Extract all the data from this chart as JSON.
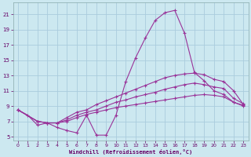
{
  "xlabel": "Windchill (Refroidissement éolien,°C)",
  "ylabel": "",
  "bg_color": "#cce8f0",
  "grid_color": "#aaccdd",
  "line_color": "#993399",
  "xlim": [
    -0.5,
    23.5
  ],
  "ylim": [
    4.5,
    22.5
  ],
  "xticks": [
    0,
    1,
    2,
    3,
    4,
    5,
    6,
    7,
    8,
    9,
    10,
    11,
    12,
    13,
    14,
    15,
    16,
    17,
    18,
    19,
    20,
    21,
    22,
    23
  ],
  "yticks": [
    5,
    7,
    9,
    11,
    13,
    15,
    17,
    19,
    21
  ],
  "line1_x": [
    0,
    1,
    2,
    3,
    4,
    5,
    6,
    7,
    8,
    9,
    10,
    11,
    12,
    13,
    14,
    15,
    16,
    17,
    18,
    19,
    20,
    21,
    22,
    23
  ],
  "line1_y": [
    8.5,
    7.8,
    6.5,
    6.8,
    6.2,
    5.8,
    5.5,
    7.8,
    5.2,
    5.2,
    7.8,
    12.2,
    15.3,
    17.9,
    20.2,
    21.2,
    21.5,
    18.5,
    13.4,
    12.3,
    11.0,
    10.5,
    9.5,
    9.0
  ],
  "line2_x": [
    0,
    2,
    3,
    4,
    5,
    6,
    7,
    8,
    9,
    10,
    11,
    12,
    13,
    14,
    15,
    16,
    17,
    18,
    19,
    20,
    21,
    22,
    23
  ],
  "line2_y": [
    8.5,
    7.0,
    6.8,
    6.8,
    7.5,
    8.2,
    8.5,
    9.2,
    9.7,
    10.2,
    10.7,
    11.2,
    11.7,
    12.2,
    12.7,
    13.0,
    13.2,
    13.3,
    13.1,
    12.5,
    12.2,
    11.0,
    9.2
  ],
  "line3_x": [
    0,
    2,
    3,
    4,
    5,
    6,
    7,
    8,
    9,
    10,
    11,
    12,
    13,
    14,
    15,
    16,
    17,
    18,
    19,
    20,
    21,
    22,
    23
  ],
  "line3_y": [
    8.5,
    7.0,
    6.8,
    6.8,
    7.2,
    7.8,
    8.2,
    8.5,
    9.0,
    9.5,
    9.8,
    10.2,
    10.5,
    10.8,
    11.2,
    11.5,
    11.8,
    12.0,
    11.8,
    11.5,
    11.3,
    10.0,
    9.3
  ],
  "line4_x": [
    0,
    2,
    3,
    4,
    5,
    6,
    7,
    8,
    9,
    10,
    11,
    12,
    13,
    14,
    15,
    16,
    17,
    18,
    19,
    20,
    21,
    22,
    23
  ],
  "line4_y": [
    8.5,
    7.0,
    6.8,
    6.8,
    7.0,
    7.5,
    7.9,
    8.2,
    8.5,
    8.8,
    9.0,
    9.2,
    9.4,
    9.6,
    9.8,
    10.0,
    10.2,
    10.4,
    10.5,
    10.4,
    10.2,
    9.5,
    9.1
  ]
}
